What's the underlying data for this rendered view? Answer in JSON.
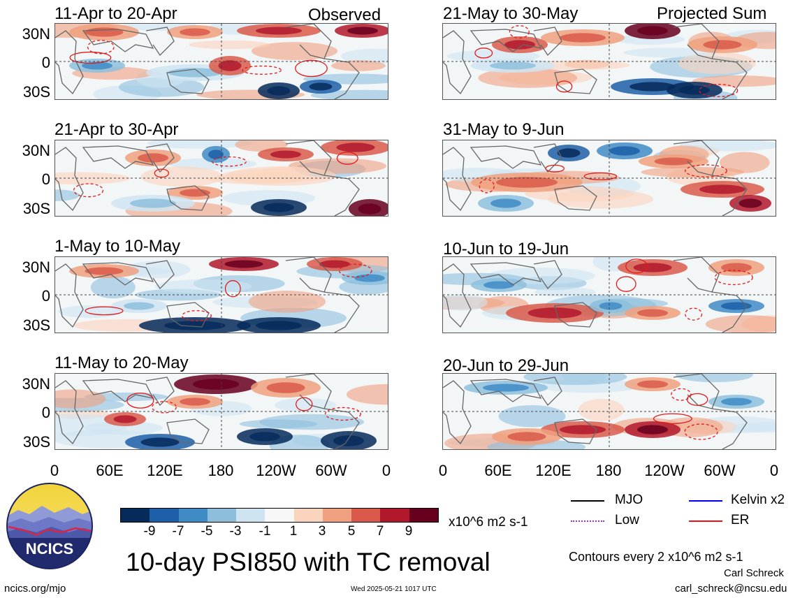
{
  "panels": {
    "left": [
      {
        "date": "11-Apr to 20-Apr",
        "tag": "Observed"
      },
      {
        "date": "21-Apr to 30-Apr",
        "tag": ""
      },
      {
        "date": "1-May to 10-May",
        "tag": ""
      },
      {
        "date": "11-May to 20-May",
        "tag": ""
      }
    ],
    "right": [
      {
        "date": "21-May to 30-May",
        "tag": "Projected Sum"
      },
      {
        "date": "31-May to 9-Jun",
        "tag": ""
      },
      {
        "date": "10-Jun to 19-Jun",
        "tag": ""
      },
      {
        "date": "20-Jun to 29-Jun",
        "tag": ""
      }
    ]
  },
  "y_ticks": [
    "30N",
    "0",
    "30S"
  ],
  "x_ticks": [
    "0",
    "60E",
    "120E",
    "180",
    "120W",
    "60W",
    "0"
  ],
  "colorbar": {
    "labels": [
      "-9",
      "-7",
      "-5",
      "-3",
      "-1",
      "1",
      "3",
      "5",
      "7",
      "9"
    ],
    "colors": [
      "#062a5a",
      "#1d5fa8",
      "#3f8bc6",
      "#8dbfdd",
      "#cfe4f1",
      "#f7f7f7",
      "#fbd4bd",
      "#f0a07e",
      "#d95a4a",
      "#b2182b",
      "#67001f"
    ],
    "units": "x10^6 m2 s-1"
  },
  "legend": {
    "items": [
      {
        "label": "MJO",
        "color": "#000000",
        "style": "solid"
      },
      {
        "label": "Kelvin x2",
        "color": "#0000ee",
        "style": "solid"
      },
      {
        "label": "Low",
        "color": "#9b30d9",
        "style": "dotted"
      },
      {
        "label": "ER",
        "color": "#ee1111",
        "style": "solid"
      }
    ],
    "contours_note": "Contours every 2 x10^6 m2 s-1"
  },
  "main_title": "10-day PSI850 with TC removal",
  "logo_text": "NCICS",
  "footer": {
    "url": "ncics.org/mjo",
    "timestamp": "Wed 2025-05-21 1017 UTC",
    "author": "Carl Schreck",
    "email": "carl_schreck@ncsu.edu"
  }
}
